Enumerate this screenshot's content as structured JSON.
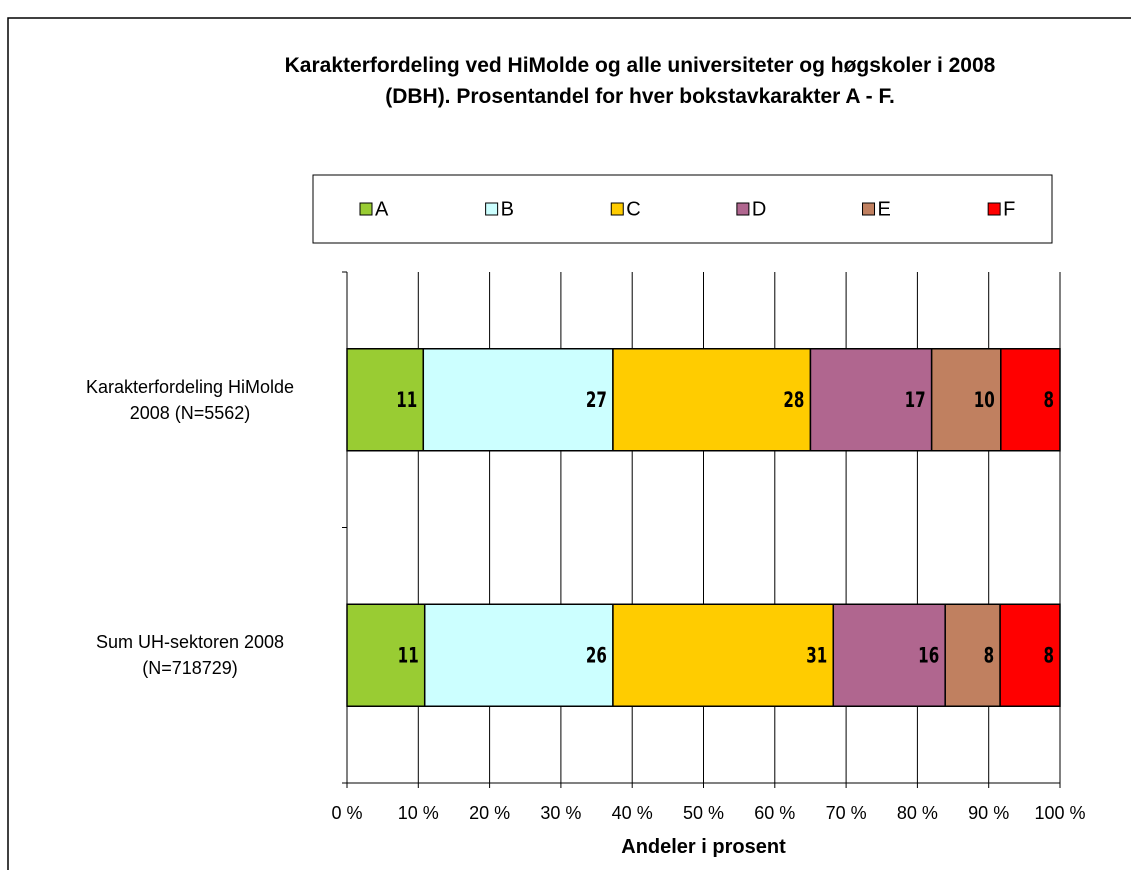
{
  "chart_data": {
    "type": "stacked_barh",
    "title": "Karakterfordeling ved HiMolde og alle universiteter og høgskoler i 2008\n(DBH). Prosentandel for hver bokstavkarakter A - F.",
    "xlabel": "Andeler i prosent",
    "categories": [
      "Karakterfordeling HiMolde\n2008 (N=5562)",
      "Sum UH-sektoren 2008\n(N=718729)"
    ],
    "series": [
      {
        "name": "A",
        "color": "#99cc33",
        "values": [
          10.7,
          10.9
        ],
        "value_labels": [
          "11",
          "11"
        ]
      },
      {
        "name": "B",
        "color": "#ccffff",
        "values": [
          26.6,
          26.4
        ],
        "value_labels": [
          "27",
          "26"
        ]
      },
      {
        "name": "C",
        "color": "#ffcc00",
        "values": [
          27.7,
          30.9
        ],
        "value_labels": [
          "28",
          "31"
        ]
      },
      {
        "name": "D",
        "color": "#b0668f",
        "values": [
          17.0,
          15.7
        ],
        "value_labels": [
          "17",
          "16"
        ]
      },
      {
        "name": "E",
        "color": "#c08060",
        "values": [
          9.7,
          7.7
        ],
        "value_labels": [
          "10",
          "8"
        ]
      },
      {
        "name": "F",
        "color": "#ff0000",
        "values": [
          8.3,
          8.4
        ],
        "value_labels": [
          "8",
          "8"
        ]
      }
    ],
    "xlim": [
      0,
      100
    ],
    "xticks": [
      {
        "value": 0,
        "label": "0 %"
      },
      {
        "value": 10,
        "label": "10 %"
      },
      {
        "value": 20,
        "label": "20 %"
      },
      {
        "value": 30,
        "label": "30 %"
      },
      {
        "value": 40,
        "label": "40 %"
      },
      {
        "value": 50,
        "label": "50 %"
      },
      {
        "value": 60,
        "label": "60 %"
      },
      {
        "value": 70,
        "label": "70 %"
      },
      {
        "value": 80,
        "label": "80 %"
      },
      {
        "value": 90,
        "label": "90 %"
      },
      {
        "value": 100,
        "label": "100 %"
      }
    ],
    "grid": true,
    "legend": "top"
  }
}
